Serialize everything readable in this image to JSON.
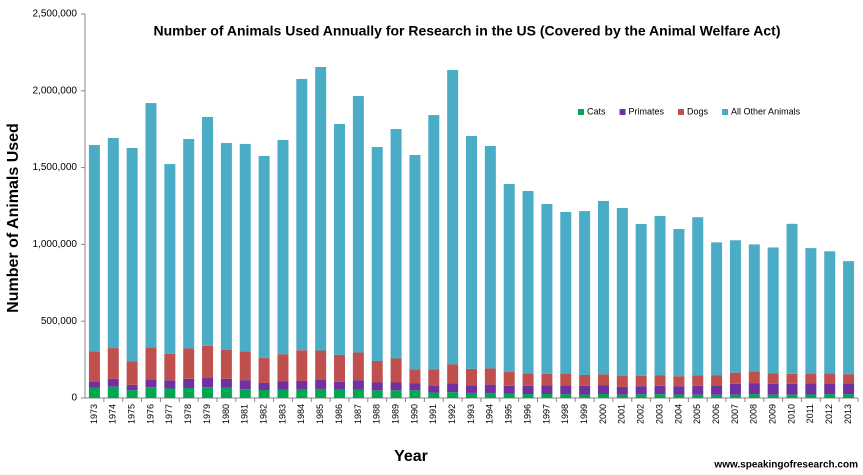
{
  "chart_data": {
    "type": "stacked-bar",
    "title": "Number of Animals Used Annually for Research in the US (Covered by the Animal Welfare Act)",
    "x_label": "Year",
    "y_label": "Number of Animals Used",
    "source": "www.speakingofresearch.com",
    "categories": [
      "1973",
      "1974",
      "1975",
      "1976",
      "1977",
      "1978",
      "1979",
      "1980",
      "1981",
      "1982",
      "1983",
      "1984",
      "1985",
      "1986",
      "1987",
      "1988",
      "1989",
      "1990",
      "1991",
      "1992",
      "1993",
      "1994",
      "1995",
      "1996",
      "1997",
      "1998",
      "1999",
      "2000",
      "2001",
      "2002",
      "2003",
      "2004",
      "2005",
      "2006",
      "2007",
      "2008",
      "2009",
      "2010",
      "2011",
      "2012",
      "2013"
    ],
    "series": [
      {
        "name": "Cats",
        "color": "#00a651",
        "values": [
          66000,
          74000,
          51000,
          70000,
          62000,
          65000,
          70000,
          68000,
          58000,
          52000,
          55000,
          56000,
          59000,
          54000,
          55000,
          50000,
          50000,
          50000,
          35000,
          38000,
          33000,
          32000,
          29000,
          26000,
          26000,
          25000,
          23000,
          26000,
          22000,
          24000,
          25000,
          23000,
          22000,
          21000,
          22000,
          25000,
          22000,
          22000,
          23000,
          25000,
          24000
        ]
      },
      {
        "name": "Primates",
        "color": "#7030a0",
        "values": [
          43000,
          51000,
          35000,
          50000,
          53000,
          60000,
          60000,
          57000,
          58000,
          46000,
          55000,
          55000,
          58000,
          51000,
          61000,
          51000,
          51000,
          47000,
          43000,
          57000,
          50000,
          55000,
          51000,
          53000,
          56000,
          58000,
          57000,
          58000,
          50000,
          53000,
          55000,
          54000,
          58000,
          62000,
          70000,
          72000,
          71000,
          71000,
          71000,
          71000,
          70000
        ]
      },
      {
        "name": "Dogs",
        "color": "#c0504d",
        "values": [
          195000,
          200000,
          154000,
          210000,
          172000,
          198000,
          210000,
          190000,
          188000,
          162000,
          175000,
          200000,
          192000,
          176000,
          180000,
          140000,
          156000,
          90000,
          108000,
          124000,
          107000,
          106000,
          89000,
          82000,
          76000,
          76000,
          70000,
          70000,
          71000,
          68000,
          69000,
          65000,
          67000,
          66000,
          73000,
          77000,
          67000,
          65000,
          65000,
          65000,
          61000
        ]
      },
      {
        "name": "All Other Animals",
        "color": "#4bacc6",
        "values": [
          1343000,
          1368000,
          1388000,
          1590000,
          1236000,
          1363000,
          1490000,
          1345000,
          1350000,
          1316000,
          1395000,
          1766000,
          1846000,
          1503000,
          1670000,
          1393000,
          1494000,
          1395000,
          1656000,
          1916000,
          1516000,
          1448000,
          1224000,
          1187000,
          1105000,
          1052000,
          1067000,
          1129000,
          1094000,
          988000,
          1036000,
          958000,
          1030000,
          864000,
          862000,
          826000,
          820000,
          976000,
          817000,
          794000,
          736000
        ]
      }
    ],
    "ylim": [
      0,
      2500000
    ],
    "yticks": [
      0,
      {
        "value": 500000,
        "label": "500,000"
      },
      {
        "value": 1000000,
        "label": "1,000,000"
      },
      {
        "value": 1500000,
        "label": "1,500,000"
      },
      {
        "value": 2000000,
        "label": "2,000,000"
      },
      {
        "value": 2500000,
        "label": "2,500,000"
      }
    ],
    "grid": false,
    "legend": "upper right"
  }
}
